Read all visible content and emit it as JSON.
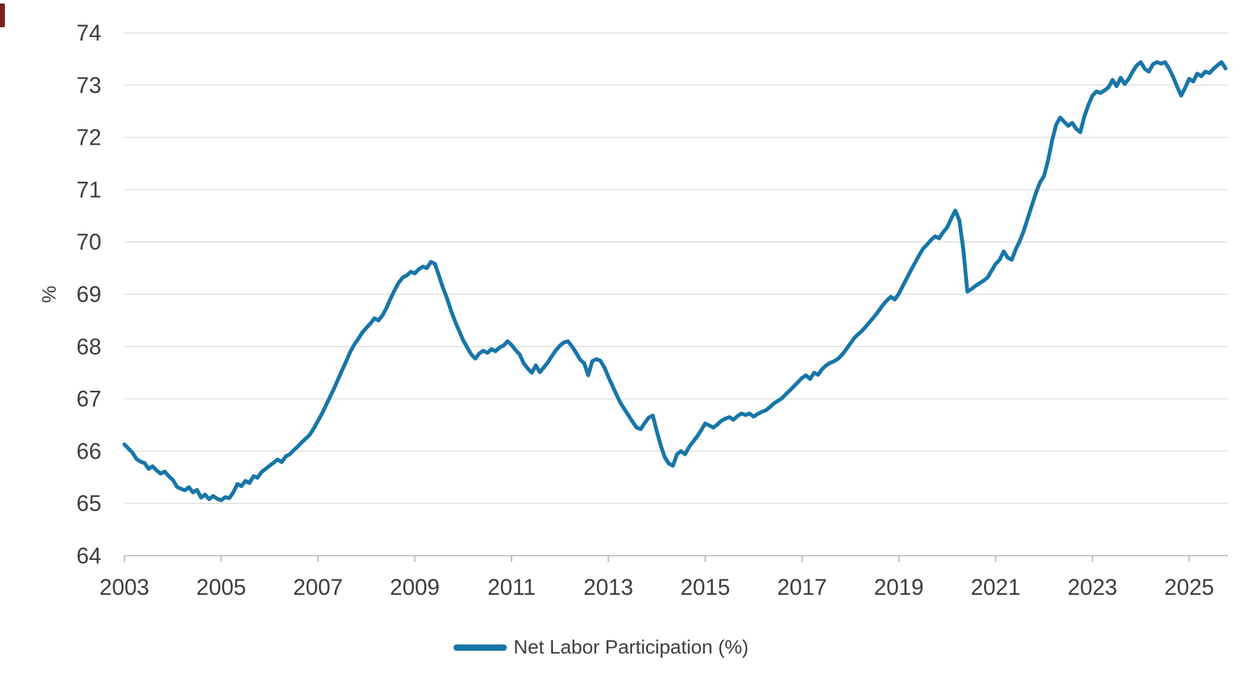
{
  "colors": {
    "line": "#1776a8",
    "grid": "#dedede",
    "axis": "#c6c6c6",
    "tick": "#bdbdbd",
    "text": "#3e3e3e",
    "edge_artifact": "#7a1f1f",
    "background": "#ffffff"
  },
  "legend": {
    "label": "Net Labor Participation (%)"
  },
  "chart_data": {
    "type": "line",
    "title": "",
    "xlabel": "",
    "ylabel": "%",
    "xlim": [
      2003,
      2025.8
    ],
    "ylim": [
      64,
      74
    ],
    "xticks": [
      2003,
      2005,
      2007,
      2009,
      2011,
      2013,
      2015,
      2017,
      2019,
      2021,
      2023,
      2025
    ],
    "yticks": [
      64,
      65,
      66,
      67,
      68,
      69,
      70,
      71,
      72,
      73,
      74
    ],
    "grid": "horizontal",
    "legend_position": "bottom-center",
    "series": [
      {
        "name": "Net Labor Participation (%)",
        "color": "#1776a8",
        "x_start": 2003.0,
        "points_per_year": 12,
        "values": [
          66.13,
          66.05,
          65.97,
          65.85,
          65.8,
          65.77,
          65.66,
          65.71,
          65.63,
          65.57,
          65.61,
          65.52,
          65.45,
          65.32,
          65.28,
          65.25,
          65.31,
          65.21,
          65.26,
          65.11,
          65.17,
          65.08,
          65.14,
          65.09,
          65.06,
          65.12,
          65.1,
          65.21,
          65.37,
          65.33,
          65.43,
          65.39,
          65.52,
          65.49,
          65.6,
          65.66,
          65.72,
          65.78,
          65.84,
          65.79,
          65.9,
          65.94,
          66.02,
          66.09,
          66.17,
          66.24,
          66.32,
          66.44,
          66.58,
          66.72,
          66.88,
          67.04,
          67.2,
          67.38,
          67.55,
          67.72,
          67.9,
          68.04,
          68.15,
          68.27,
          68.36,
          68.44,
          68.54,
          68.5,
          68.6,
          68.74,
          68.92,
          69.08,
          69.22,
          69.32,
          69.36,
          69.43,
          69.4,
          69.48,
          69.53,
          69.5,
          69.62,
          69.58,
          69.35,
          69.12,
          68.92,
          68.68,
          68.48,
          68.3,
          68.12,
          67.98,
          67.85,
          67.77,
          67.87,
          67.92,
          67.88,
          67.95,
          67.91,
          67.98,
          68.02,
          68.1,
          68.03,
          67.93,
          67.85,
          67.68,
          67.58,
          67.5,
          67.64,
          67.51,
          67.6,
          67.7,
          67.82,
          67.93,
          68.02,
          68.08,
          68.1,
          68.0,
          67.88,
          67.75,
          67.68,
          67.45,
          67.72,
          67.76,
          67.73,
          67.6,
          67.42,
          67.25,
          67.08,
          66.92,
          66.8,
          66.68,
          66.56,
          66.45,
          66.42,
          66.54,
          66.64,
          66.68,
          66.38,
          66.1,
          65.88,
          65.76,
          65.72,
          65.94,
          66.0,
          65.94,
          66.08,
          66.18,
          66.28,
          66.4,
          66.53,
          66.49,
          66.45,
          66.51,
          66.58,
          66.62,
          66.65,
          66.6,
          66.67,
          66.72,
          66.69,
          66.72,
          66.66,
          66.71,
          66.75,
          66.78,
          66.84,
          66.91,
          66.96,
          67.01,
          67.09,
          67.16,
          67.24,
          67.32,
          67.4,
          67.45,
          67.38,
          67.5,
          67.46,
          67.57,
          67.64,
          67.69,
          67.72,
          67.77,
          67.85,
          67.95,
          68.06,
          68.17,
          68.24,
          68.31,
          68.4,
          68.49,
          68.58,
          68.68,
          68.79,
          68.88,
          68.95,
          68.9,
          69.01,
          69.16,
          69.31,
          69.46,
          69.6,
          69.74,
          69.87,
          69.95,
          70.04,
          70.11,
          70.07,
          70.19,
          70.28,
          70.45,
          70.6,
          70.42,
          69.85,
          69.05,
          69.1,
          69.16,
          69.21,
          69.26,
          69.32,
          69.45,
          69.58,
          69.66,
          69.82,
          69.7,
          69.66,
          69.86,
          70.02,
          70.22,
          70.46,
          70.7,
          70.94,
          71.14,
          71.26,
          71.56,
          71.94,
          72.24,
          72.38,
          72.3,
          72.22,
          72.28,
          72.16,
          72.1,
          72.4,
          72.62,
          72.8,
          72.88,
          72.85,
          72.9,
          72.96,
          73.1,
          72.98,
          73.14,
          73.02,
          73.12,
          73.26,
          73.38,
          73.44,
          73.31,
          73.26,
          73.4,
          73.44,
          73.41,
          73.44,
          73.32,
          73.16,
          72.97,
          72.8,
          72.95,
          73.12,
          73.07,
          73.22,
          73.17,
          73.26,
          73.23,
          73.31,
          73.38,
          73.44,
          73.32
        ]
      }
    ]
  }
}
